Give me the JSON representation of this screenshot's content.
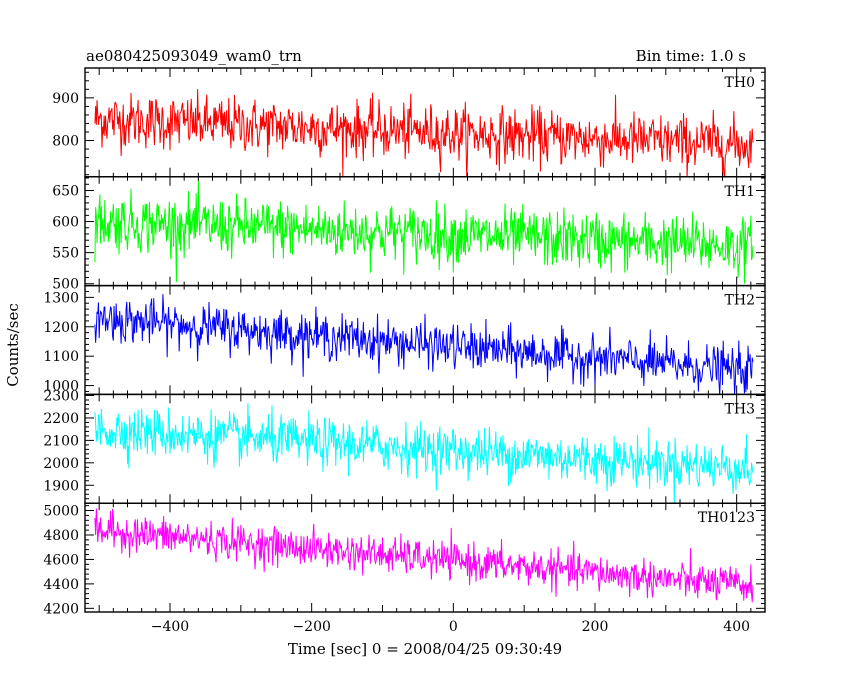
{
  "chart_data": {
    "type": "line",
    "title_left": "ae080425093049_wam0_trn",
    "title_right": "Bin time: 1.0 s",
    "xlabel": "Time [sec] 0 = 2008/04/25 09:30:49",
    "ylabel": "Counts/sec",
    "xlim": [
      -520,
      440
    ],
    "x_data_range": [
      -506,
      423
    ],
    "x_ticks": [
      {
        "value": -400,
        "label": "−400"
      },
      {
        "value": -200,
        "label": "−200"
      },
      {
        "value": 0,
        "label": "0"
      },
      {
        "value": 200,
        "label": "200"
      },
      {
        "value": 400,
        "label": "400"
      }
    ],
    "panels": [
      {
        "name": "TH0",
        "color": "#ff0000",
        "ylim": [
          715,
          970
        ],
        "y_ticks": [
          {
            "value": 800,
            "label": "800"
          },
          {
            "value": 900,
            "label": "900"
          }
        ],
        "trend_start": 850,
        "trend_end": 790,
        "noise_sd": 32
      },
      {
        "name": "TH1",
        "color": "#00ff00",
        "ylim": [
          497,
          672
        ],
        "y_ticks": [
          {
            "value": 500,
            "label": "500"
          },
          {
            "value": 550,
            "label": "550"
          },
          {
            "value": 600,
            "label": "600"
          },
          {
            "value": 650,
            "label": "650"
          }
        ],
        "trend_start": 600,
        "trend_end": 560,
        "noise_sd": 23
      },
      {
        "name": "TH2",
        "color": "#0000ff",
        "ylim": [
          970,
          1340
        ],
        "y_ticks": [
          {
            "value": 1000,
            "label": "1000"
          },
          {
            "value": 1100,
            "label": "1100"
          },
          {
            "value": 1200,
            "label": "1200"
          },
          {
            "value": 1300,
            "label": "1300"
          }
        ],
        "trend_start": 1230,
        "trend_end": 1050,
        "noise_sd": 38
      },
      {
        "name": "TH3",
        "color": "#00ffff",
        "ylim": [
          1820,
          2305
        ],
        "y_ticks": [
          {
            "value": 1900,
            "label": "1900"
          },
          {
            "value": 2000,
            "label": "2000"
          },
          {
            "value": 2100,
            "label": "2100"
          },
          {
            "value": 2200,
            "label": "2200"
          },
          {
            "value": 2300,
            "label": "2300"
          }
        ],
        "trend_start": 2150,
        "trend_end": 1975,
        "noise_sd": 55
      },
      {
        "name": "TH0123",
        "color": "#ff00ff",
        "ylim": [
          4170,
          5060
        ],
        "y_ticks": [
          {
            "value": 4200,
            "label": "4200"
          },
          {
            "value": 4400,
            "label": "4400"
          },
          {
            "value": 4600,
            "label": "4600"
          },
          {
            "value": 4800,
            "label": "4800"
          },
          {
            "value": 5000,
            "label": "5000"
          }
        ],
        "trend_start": 4840,
        "trend_end": 4380,
        "noise_sd": 75
      }
    ]
  }
}
